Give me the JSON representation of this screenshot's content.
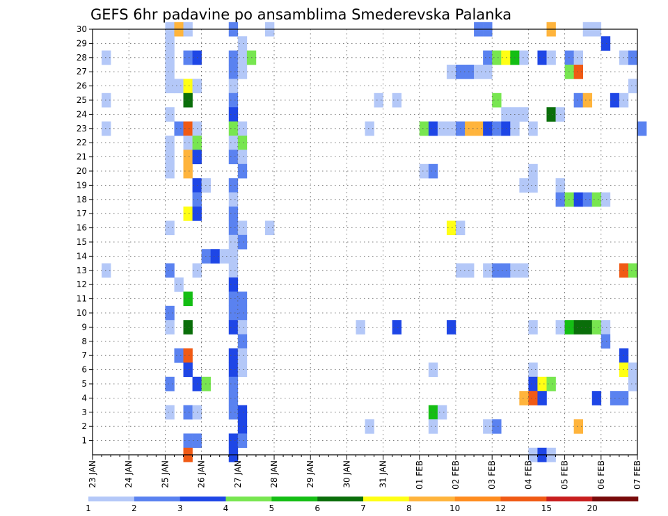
{
  "chart_data": {
    "type": "heatmap",
    "title": "GEFS 6hr padavine po ansamblima Smederevska Palanka",
    "xlabel": "",
    "ylabel": "",
    "x_tick_labels": [
      "23 JAN",
      "24 JAN",
      "25 JAN",
      "26 JAN",
      "27 JAN",
      "28 JAN",
      "29 JAN",
      "30 JAN",
      "31 JAN",
      "01 FEB",
      "02 FEB",
      "03 FEB",
      "04 FEB",
      "05 FEB",
      "06 FEB",
      "07 FEB"
    ],
    "y_tick_labels": [
      "1",
      "2",
      "3",
      "4",
      "5",
      "6",
      "7",
      "8",
      "9",
      "10",
      "11",
      "12",
      "13",
      "14",
      "15",
      "16",
      "17",
      "18",
      "19",
      "20",
      "21",
      "22",
      "23",
      "24",
      "25",
      "26",
      "27",
      "28",
      "29",
      "30"
    ],
    "x_unit": "6-hour step (index 0 = 23 JAN 00Z)",
    "y_range": [
      0,
      30
    ],
    "x_range": [
      0,
      60
    ],
    "grid": true,
    "legend": {
      "position": "bottom",
      "labels": [
        "1",
        "2",
        "3",
        "4",
        "5",
        "6",
        "7",
        "8",
        "10",
        "12",
        "15",
        "20"
      ],
      "colors": [
        "#b4c8f8",
        "#5a82f0",
        "#1e46e6",
        "#78e650",
        "#14be14",
        "#0a6e0a",
        "#ffff14",
        "#ffb43c",
        "#ff8c1e",
        "#f05a14",
        "#c81e1e",
        "#780a0a"
      ]
    },
    "cells": [
      [
        8,
        30,
        1
      ],
      [
        9,
        30,
        8
      ],
      [
        10,
        30,
        1
      ],
      [
        15,
        30,
        2
      ],
      [
        19,
        30,
        1
      ],
      [
        42,
        30,
        2
      ],
      [
        43,
        30,
        2
      ],
      [
        50,
        30,
        8
      ],
      [
        54,
        30,
        1
      ],
      [
        55,
        30,
        1
      ],
      [
        8,
        29,
        1
      ],
      [
        16,
        29,
        1
      ],
      [
        56,
        29,
        3
      ],
      [
        1,
        28,
        1
      ],
      [
        8,
        28,
        1
      ],
      [
        10,
        28,
        2
      ],
      [
        11,
        28,
        3
      ],
      [
        15,
        28,
        2
      ],
      [
        16,
        28,
        1
      ],
      [
        17,
        28,
        4
      ],
      [
        43,
        28,
        2
      ],
      [
        44,
        28,
        4
      ],
      [
        45,
        28,
        7
      ],
      [
        46,
        28,
        5
      ],
      [
        47,
        28,
        1
      ],
      [
        49,
        28,
        3
      ],
      [
        50,
        28,
        1
      ],
      [
        52,
        28,
        2
      ],
      [
        53,
        28,
        1
      ],
      [
        58,
        28,
        1
      ],
      [
        59,
        28,
        2
      ],
      [
        8,
        27,
        1
      ],
      [
        15,
        27,
        2
      ],
      [
        16,
        27,
        1
      ],
      [
        39,
        27,
        1
      ],
      [
        40,
        27,
        2
      ],
      [
        41,
        27,
        2
      ],
      [
        42,
        27,
        1
      ],
      [
        43,
        27,
        1
      ],
      [
        52,
        27,
        4
      ],
      [
        53,
        27,
        10
      ],
      [
        8,
        26,
        1
      ],
      [
        9,
        26,
        1
      ],
      [
        10,
        26,
        7
      ],
      [
        11,
        26,
        1
      ],
      [
        15,
        26,
        1
      ],
      [
        59,
        26,
        1
      ],
      [
        1,
        25,
        1
      ],
      [
        10,
        25,
        6
      ],
      [
        15,
        25,
        2
      ],
      [
        31,
        25,
        1
      ],
      [
        33,
        25,
        1
      ],
      [
        44,
        25,
        4
      ],
      [
        53,
        25,
        2
      ],
      [
        54,
        25,
        8
      ],
      [
        57,
        25,
        3
      ],
      [
        58,
        25,
        1
      ],
      [
        8,
        24,
        1
      ],
      [
        15,
        24,
        3
      ],
      [
        45,
        24,
        1
      ],
      [
        46,
        24,
        1
      ],
      [
        47,
        24,
        1
      ],
      [
        50,
        24,
        6
      ],
      [
        51,
        24,
        1
      ],
      [
        1,
        23,
        1
      ],
      [
        9,
        23,
        2
      ],
      [
        10,
        23,
        10
      ],
      [
        11,
        23,
        1
      ],
      [
        15,
        23,
        4
      ],
      [
        16,
        23,
        1
      ],
      [
        30,
        23,
        1
      ],
      [
        36,
        23,
        4
      ],
      [
        37,
        23,
        3
      ],
      [
        38,
        23,
        1
      ],
      [
        39,
        23,
        1
      ],
      [
        40,
        23,
        2
      ],
      [
        41,
        23,
        8
      ],
      [
        42,
        23,
        8
      ],
      [
        43,
        23,
        3
      ],
      [
        44,
        23,
        2
      ],
      [
        45,
        23,
        3
      ],
      [
        46,
        23,
        1
      ],
      [
        48,
        23,
        1
      ],
      [
        60,
        23,
        2
      ],
      [
        8,
        22,
        1
      ],
      [
        10,
        22,
        1
      ],
      [
        11,
        22,
        4
      ],
      [
        15,
        22,
        1
      ],
      [
        16,
        22,
        4
      ],
      [
        8,
        21,
        1
      ],
      [
        10,
        21,
        8
      ],
      [
        11,
        21,
        3
      ],
      [
        15,
        21,
        2
      ],
      [
        16,
        21,
        1
      ],
      [
        8,
        20,
        1
      ],
      [
        10,
        20,
        8
      ],
      [
        16,
        20,
        2
      ],
      [
        36,
        20,
        1
      ],
      [
        37,
        20,
        2
      ],
      [
        48,
        20,
        1
      ],
      [
        11,
        19,
        3
      ],
      [
        12,
        19,
        1
      ],
      [
        15,
        19,
        2
      ],
      [
        47,
        19,
        1
      ],
      [
        48,
        19,
        1
      ],
      [
        51,
        19,
        1
      ],
      [
        11,
        18,
        2
      ],
      [
        15,
        18,
        1
      ],
      [
        51,
        18,
        2
      ],
      [
        52,
        18,
        4
      ],
      [
        53,
        18,
        3
      ],
      [
        54,
        18,
        2
      ],
      [
        55,
        18,
        4
      ],
      [
        56,
        18,
        1
      ],
      [
        10,
        17,
        7
      ],
      [
        11,
        17,
        3
      ],
      [
        15,
        17,
        2
      ],
      [
        8,
        16,
        1
      ],
      [
        15,
        16,
        2
      ],
      [
        16,
        16,
        1
      ],
      [
        19,
        16,
        1
      ],
      [
        39,
        16,
        7
      ],
      [
        40,
        16,
        1
      ],
      [
        15,
        15,
        1
      ],
      [
        16,
        15,
        2
      ],
      [
        12,
        14,
        2
      ],
      [
        13,
        14,
        3
      ],
      [
        14,
        14,
        1
      ],
      [
        15,
        14,
        1
      ],
      [
        1,
        13,
        1
      ],
      [
        8,
        13,
        2
      ],
      [
        11,
        13,
        1
      ],
      [
        15,
        13,
        1
      ],
      [
        40,
        13,
        1
      ],
      [
        41,
        13,
        1
      ],
      [
        43,
        13,
        1
      ],
      [
        44,
        13,
        2
      ],
      [
        45,
        13,
        2
      ],
      [
        46,
        13,
        1
      ],
      [
        47,
        13,
        1
      ],
      [
        58,
        13,
        10
      ],
      [
        59,
        13,
        4
      ],
      [
        9,
        12,
        1
      ],
      [
        15,
        12,
        3
      ],
      [
        10,
        11,
        5
      ],
      [
        15,
        11,
        2
      ],
      [
        16,
        11,
        2
      ],
      [
        8,
        10,
        2
      ],
      [
        15,
        10,
        2
      ],
      [
        16,
        10,
        2
      ],
      [
        8,
        9,
        1
      ],
      [
        10,
        9,
        6
      ],
      [
        15,
        9,
        3
      ],
      [
        16,
        9,
        1
      ],
      [
        29,
        9,
        1
      ],
      [
        33,
        9,
        3
      ],
      [
        39,
        9,
        3
      ],
      [
        48,
        9,
        1
      ],
      [
        51,
        9,
        1
      ],
      [
        52,
        9,
        5
      ],
      [
        53,
        9,
        6
      ],
      [
        54,
        9,
        6
      ],
      [
        55,
        9,
        4
      ],
      [
        56,
        9,
        1
      ],
      [
        16,
        8,
        2
      ],
      [
        56,
        8,
        2
      ],
      [
        9,
        7,
        2
      ],
      [
        10,
        7,
        10
      ],
      [
        15,
        7,
        3
      ],
      [
        16,
        7,
        1
      ],
      [
        58,
        7,
        3
      ],
      [
        10,
        6,
        3
      ],
      [
        15,
        6,
        3
      ],
      [
        16,
        6,
        1
      ],
      [
        37,
        6,
        1
      ],
      [
        48,
        6,
        1
      ],
      [
        58,
        6,
        7
      ],
      [
        59,
        6,
        1
      ],
      [
        8,
        5,
        2
      ],
      [
        11,
        5,
        3
      ],
      [
        12,
        5,
        4
      ],
      [
        15,
        5,
        2
      ],
      [
        48,
        5,
        3
      ],
      [
        49,
        5,
        7
      ],
      [
        50,
        5,
        4
      ],
      [
        59,
        5,
        1
      ],
      [
        15,
        4,
        2
      ],
      [
        47,
        4,
        8
      ],
      [
        48,
        4,
        10
      ],
      [
        49,
        4,
        3
      ],
      [
        55,
        4,
        3
      ],
      [
        57,
        4,
        2
      ],
      [
        58,
        4,
        2
      ],
      [
        8,
        3,
        1
      ],
      [
        10,
        3,
        2
      ],
      [
        11,
        3,
        1
      ],
      [
        15,
        3,
        2
      ],
      [
        16,
        3,
        3
      ],
      [
        37,
        3,
        5
      ],
      [
        38,
        3,
        1
      ],
      [
        16,
        2,
        3
      ],
      [
        30,
        2,
        1
      ],
      [
        37,
        2,
        1
      ],
      [
        43,
        2,
        1
      ],
      [
        44,
        2,
        2
      ],
      [
        53,
        2,
        8
      ],
      [
        10,
        1,
        2
      ],
      [
        11,
        1,
        2
      ],
      [
        15,
        1,
        3
      ],
      [
        16,
        1,
        2
      ],
      [
        10,
        0,
        10
      ],
      [
        15,
        0,
        3
      ],
      [
        48,
        0,
        1
      ],
      [
        49,
        0,
        3
      ],
      [
        50,
        0,
        1
      ]
    ]
  }
}
